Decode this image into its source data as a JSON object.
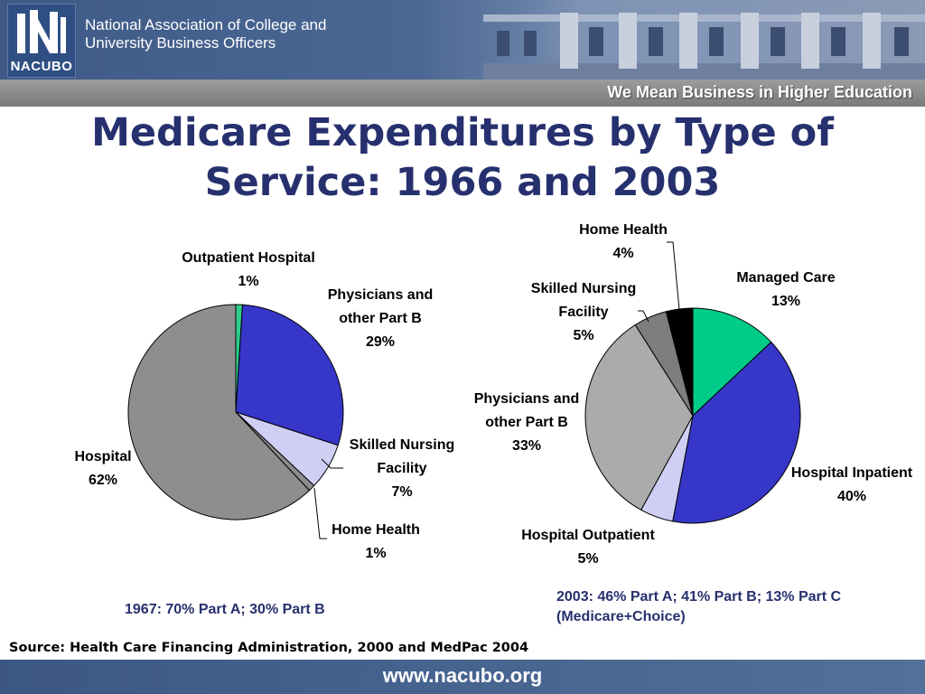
{
  "header": {
    "logo_text": "NACUBO",
    "org_name_line1": "National Association of College and",
    "org_name_line2": "University Business Officers",
    "tagline": "We Mean Business in Higher Education"
  },
  "title_line1": "Medicare Expenditures by Type of",
  "title_line2": "Service: 1966 and 2003",
  "chart_data": [
    {
      "type": "pie",
      "note": "1967: 70% Part A; 30% Part B",
      "slices": [
        {
          "label": [
            "Outpatient Hospital"
          ],
          "value": 1,
          "pct_label": "1%",
          "color": "#2ecf8a"
        },
        {
          "label": [
            "Physicians and",
            "other Part B"
          ],
          "value": 29,
          "pct_label": "29%",
          "color": "#3636c8"
        },
        {
          "label": [
            "Skilled Nursing",
            "Facility"
          ],
          "value": 7,
          "pct_label": "7%",
          "color": "#cfcff5"
        },
        {
          "label": [
            "Home Health"
          ],
          "value": 1,
          "pct_label": "1%",
          "color": "#8c8c8c"
        },
        {
          "label": [
            "Hospital"
          ],
          "value": 62,
          "pct_label": "62%",
          "color": "#8e8e8e"
        }
      ]
    },
    {
      "type": "pie",
      "note": [
        "2003: 46% Part A; 41% Part B; 13% Part C",
        "(Medicare+Choice)"
      ],
      "slices": [
        {
          "label": [
            "Managed Care"
          ],
          "value": 13,
          "pct_label": "13%",
          "color": "#00cc8a"
        },
        {
          "label": [
            "Hospital Inpatient"
          ],
          "value": 40,
          "pct_label": "40%",
          "color": "#3636c8"
        },
        {
          "label": [
            "Hospital Outpatient"
          ],
          "value": 5,
          "pct_label": "5%",
          "color": "#cfcff5"
        },
        {
          "label": [
            "Physicians and",
            "other Part B"
          ],
          "value": 33,
          "pct_label": "33%",
          "color": "#ababab"
        },
        {
          "label": [
            "Skilled Nursing",
            "Facility"
          ],
          "value": 5,
          "pct_label": "5%",
          "color": "#7d7d7d"
        },
        {
          "label": [
            "Home Health"
          ],
          "value": 4,
          "pct_label": "4%",
          "color": "#000000"
        }
      ]
    }
  ],
  "source": "Source: Health Care Financing Administration, 2000 and MedPac 2004",
  "footer_url": "www.nacubo.org"
}
